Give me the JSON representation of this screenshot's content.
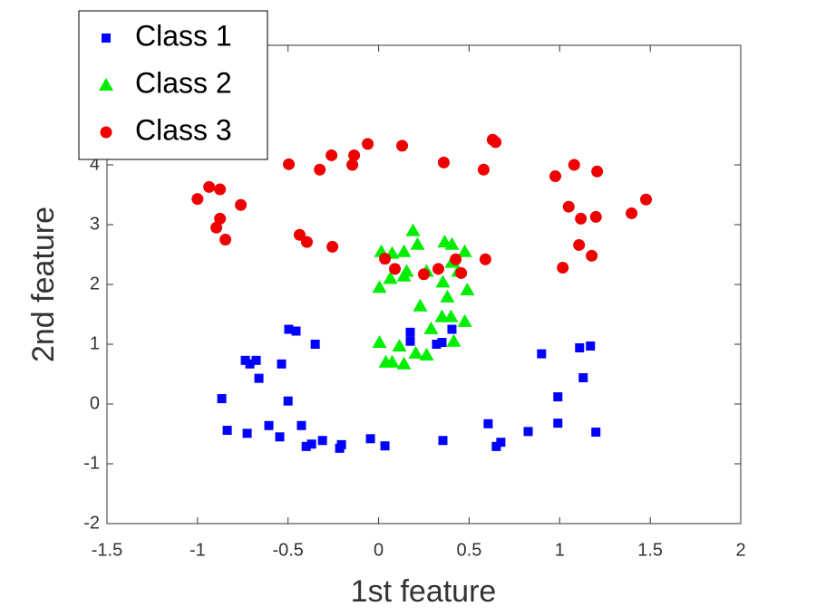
{
  "chart_data": {
    "type": "scatter",
    "xlabel": "1st feature",
    "ylabel": "2nd feature",
    "xlim": [
      -1.5,
      2
    ],
    "ylim": [
      -2,
      6
    ],
    "xticks": [
      -1.5,
      -1,
      -0.5,
      0,
      0.5,
      1,
      1.5,
      2
    ],
    "yticks": [
      -2,
      -1,
      0,
      1,
      2,
      3,
      4
    ],
    "legend": "northwest",
    "series": [
      {
        "name": "Class 1",
        "color": "#0000ff",
        "marker": "square",
        "x": [
          -0.866,
          -0.836,
          -0.726,
          -0.736,
          -0.711,
          -0.676,
          -0.661,
          -0.606,
          -0.546,
          -0.536,
          -0.5,
          -0.496,
          -0.456,
          -0.426,
          -0.35,
          -0.4,
          -0.37,
          -0.31,
          -0.215,
          -0.205,
          -0.045,
          0.035,
          0.175,
          0.175,
          0.32,
          0.35,
          0.405,
          0.355,
          0.605,
          0.65,
          0.675,
          0.826,
          0.9,
          0.99,
          0.99,
          1.11,
          1.17,
          1.13,
          1.2
        ],
        "values": [
          0.09,
          -0.44,
          -0.49,
          0.73,
          0.67,
          0.73,
          0.43,
          -0.36,
          -0.55,
          0.67,
          0.05,
          1.25,
          1.22,
          -0.36,
          1.0,
          -0.71,
          -0.67,
          -0.61,
          -0.74,
          -0.68,
          -0.58,
          -0.7,
          1.2,
          1.05,
          1.0,
          1.03,
          1.25,
          -0.61,
          -0.33,
          -0.71,
          -0.64,
          -0.46,
          0.84,
          0.12,
          -0.32,
          0.94,
          0.97,
          0.44,
          -0.47
        ]
      },
      {
        "name": "Class 2",
        "color": "#00ee00",
        "marker": "triangle",
        "x": [
          0.015,
          0.075,
          0.14,
          0.19,
          0.215,
          0.005,
          0.065,
          0.14,
          0.155,
          0.265,
          0.365,
          0.405,
          0.476,
          0.405,
          0.44,
          0.355,
          0.38,
          0.49,
          0.23,
          0.35,
          0.4,
          0.476,
          0.29,
          0.005,
          0.115,
          0.04,
          0.075,
          0.14,
          0.205,
          0.265,
          0.415
        ],
        "values": [
          2.55,
          2.52,
          2.55,
          2.9,
          2.67,
          1.95,
          2.1,
          2.14,
          2.22,
          2.22,
          2.71,
          2.67,
          2.55,
          2.37,
          2.22,
          2.04,
          1.79,
          1.91,
          1.64,
          1.46,
          1.46,
          1.38,
          1.26,
          1.03,
          0.97,
          0.7,
          0.7,
          0.67,
          0.85,
          0.82,
          1.05
        ]
      },
      {
        "name": "Class 3",
        "color": "#ee0000",
        "marker": "circle",
        "x": [
          -1.0,
          -0.936,
          -0.876,
          -0.761,
          -0.876,
          -0.896,
          -0.846,
          -0.496,
          -0.325,
          -0.26,
          -0.145,
          -0.135,
          -0.06,
          0.13,
          0.36,
          0.58,
          0.63,
          0.646,
          0.976,
          1.08,
          1.207,
          1.05,
          1.117,
          1.2,
          1.397,
          1.477,
          1.107,
          1.177,
          1.017,
          -0.436,
          -0.396,
          -0.255,
          0.035,
          0.09,
          0.25,
          0.33,
          0.426,
          0.456,
          0.59
        ],
        "values": [
          3.43,
          3.63,
          3.59,
          3.33,
          3.1,
          2.95,
          2.75,
          4.01,
          3.92,
          4.16,
          4.0,
          4.16,
          4.35,
          4.32,
          4.04,
          3.92,
          4.42,
          4.38,
          3.81,
          4.0,
          3.89,
          3.3,
          3.1,
          3.13,
          3.19,
          3.42,
          2.66,
          2.48,
          2.28,
          2.83,
          2.71,
          2.63,
          2.43,
          2.26,
          2.17,
          2.26,
          2.42,
          2.19,
          2.42
        ]
      }
    ]
  }
}
